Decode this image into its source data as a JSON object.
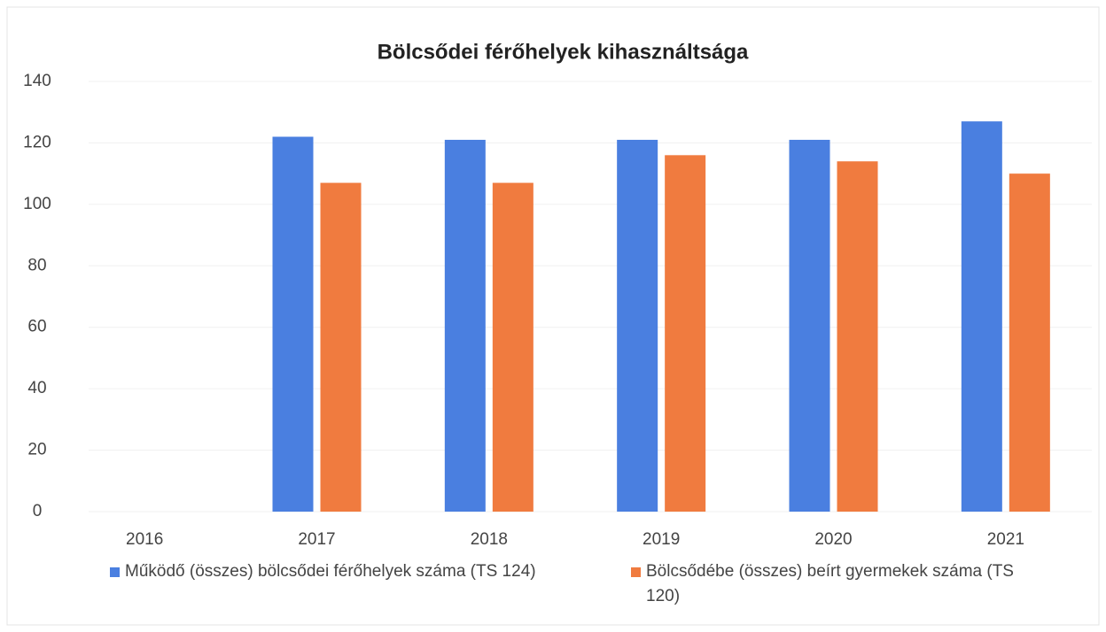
{
  "chart_data": {
    "type": "bar",
    "title": "Bölcsődei férőhelyek kihasználtsága",
    "categories": [
      "2016",
      "2017",
      "2018",
      "2019",
      "2020",
      "2021"
    ],
    "series": [
      {
        "name": "Működő (összes) bölcsődei férőhelyek száma (TS 124)",
        "color": "#4a7fe0",
        "values": [
          null,
          122,
          121,
          121,
          121,
          127
        ]
      },
      {
        "name": "Bölcsődébe (összes) beírt gyermekek száma (TS 120)",
        "color": "#f07b3f",
        "values": [
          null,
          107,
          107,
          116,
          114,
          110
        ]
      }
    ],
    "ylim": [
      0,
      140
    ],
    "yticks": [
      0,
      20,
      40,
      60,
      80,
      100,
      120,
      140
    ],
    "grid": true,
    "legend": "bottom"
  }
}
